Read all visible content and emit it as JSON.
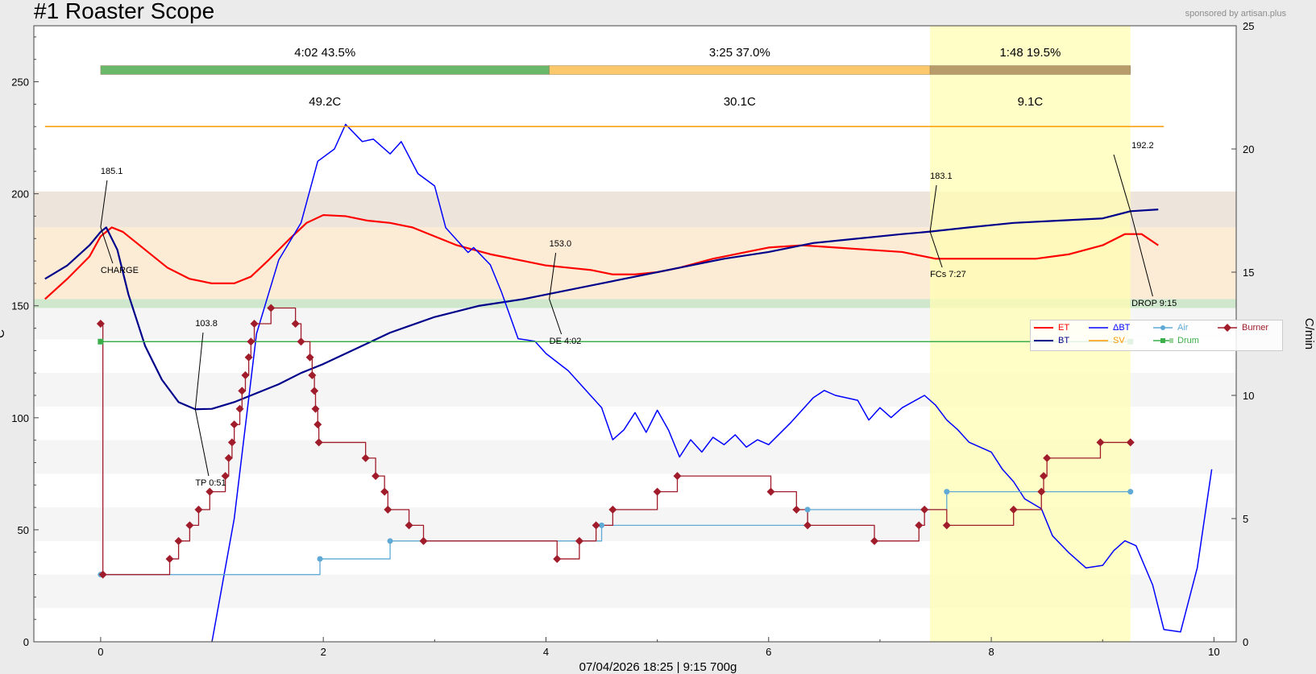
{
  "header": {
    "title": "#1 Roaster Scope",
    "sponsor": "sponsored by artisan.plus",
    "subtitle": "07/04/2026  18:25   |   9:15   700g"
  },
  "axes": {
    "ylabel_left": "C",
    "ylabel_right": "C/min"
  },
  "phases": [
    {
      "time_label": "4:02",
      "pct_label": "43.5%",
      "delta_label": "49.2C",
      "start": 0,
      "end": 4.03,
      "color": "#6ab96a"
    },
    {
      "time_label": "3:25",
      "pct_label": "37.0%",
      "delta_label": "30.1C",
      "start": 4.03,
      "end": 7.45,
      "color": "#fbc86b"
    },
    {
      "time_label": "1:48",
      "pct_label": "19.5%",
      "delta_label": "9.1C",
      "start": 7.45,
      "end": 9.25,
      "color": "#b89c6a"
    }
  ],
  "annotations": [
    {
      "value": "185.1",
      "event": "CHARGE",
      "x": 0.0,
      "y": 185.1
    },
    {
      "value": "103.8",
      "event": "TP 0:51",
      "x": 0.85,
      "y": 103.8
    },
    {
      "value": "153.0",
      "event": "DE 4:02",
      "x": 4.03,
      "y": 153.0
    },
    {
      "value": "183.1",
      "event": "FCs 7:27",
      "x": 7.45,
      "y": 183.1
    },
    {
      "value": "192.2",
      "event": "DROP 9:15",
      "x": 9.25,
      "y": 192.2
    }
  ],
  "legend": [
    {
      "label": "ET",
      "color": "#ff0000",
      "style": "line"
    },
    {
      "label": "ΔBT",
      "color": "#0000ff",
      "style": "line"
    },
    {
      "label": "Air",
      "color": "#5ea9d6",
      "style": "dot"
    },
    {
      "label": "Burner",
      "color": "#a01c2a",
      "style": "diamond"
    },
    {
      "label": "BT",
      "color": "#00008b",
      "style": "line"
    },
    {
      "label": "SV",
      "color": "#ff9a00",
      "style": "line"
    },
    {
      "label": "Drum",
      "color": "#3cae4a",
      "style": "square"
    }
  ],
  "chart_data": {
    "type": "line",
    "title": "#1 Roaster Scope",
    "xlim": [
      -0.6,
      10.2
    ],
    "ylim": [
      0,
      275
    ],
    "y2lim": [
      0,
      25
    ],
    "xticks": [
      "0",
      "2",
      "4",
      "6",
      "8",
      "10"
    ],
    "yticks": [
      "0",
      "50",
      "100",
      "150",
      "200",
      "250"
    ],
    "y2ticks": [
      "0",
      "5",
      "10",
      "15",
      "20",
      "25"
    ],
    "grid": false,
    "legend_position": "right",
    "highlight_band": {
      "x_start": 7.45,
      "x_end": 9.25,
      "color": "#fffdb3"
    },
    "bands": [
      {
        "y_start": 185,
        "y_end": 201,
        "color": "#ede4dc"
      },
      {
        "y_start": 153,
        "y_end": 185,
        "color": "#fdecd5"
      },
      {
        "y_start": 149,
        "y_end": 153,
        "color": "#cfe8cd"
      }
    ],
    "series": [
      {
        "name": "ET",
        "axis": "left",
        "color": "#ff0000",
        "points": [
          [
            -0.5,
            153
          ],
          [
            -0.3,
            162
          ],
          [
            -0.1,
            172
          ],
          [
            0.0,
            181
          ],
          [
            0.1,
            185
          ],
          [
            0.2,
            183
          ],
          [
            0.4,
            175
          ],
          [
            0.6,
            167
          ],
          [
            0.8,
            162
          ],
          [
            1.0,
            160
          ],
          [
            1.2,
            160
          ],
          [
            1.35,
            163
          ],
          [
            1.5,
            170
          ],
          [
            1.7,
            180
          ],
          [
            1.85,
            187
          ],
          [
            2.0,
            190.5
          ],
          [
            2.2,
            190
          ],
          [
            2.4,
            188
          ],
          [
            2.6,
            187
          ],
          [
            2.8,
            185
          ],
          [
            3.0,
            181
          ],
          [
            3.2,
            177
          ],
          [
            3.5,
            173
          ],
          [
            3.8,
            170
          ],
          [
            4.0,
            168
          ],
          [
            4.2,
            167
          ],
          [
            4.4,
            166
          ],
          [
            4.6,
            164
          ],
          [
            4.8,
            164
          ],
          [
            5.0,
            165
          ],
          [
            5.2,
            167
          ],
          [
            5.5,
            171
          ],
          [
            5.8,
            174
          ],
          [
            6.0,
            176
          ],
          [
            6.3,
            177
          ],
          [
            6.6,
            176
          ],
          [
            6.9,
            175
          ],
          [
            7.2,
            174
          ],
          [
            7.5,
            171
          ],
          [
            7.8,
            171
          ],
          [
            8.1,
            171
          ],
          [
            8.4,
            171
          ],
          [
            8.7,
            173
          ],
          [
            9.0,
            177
          ],
          [
            9.2,
            182
          ],
          [
            9.35,
            182
          ],
          [
            9.5,
            177
          ]
        ]
      },
      {
        "name": "BT",
        "axis": "left",
        "color": "#00008b",
        "points": [
          [
            -0.5,
            162
          ],
          [
            -0.3,
            168
          ],
          [
            -0.1,
            177
          ],
          [
            0.0,
            183
          ],
          [
            0.05,
            185
          ],
          [
            0.15,
            175
          ],
          [
            0.25,
            155
          ],
          [
            0.4,
            132
          ],
          [
            0.55,
            117
          ],
          [
            0.7,
            107
          ],
          [
            0.85,
            103.8
          ],
          [
            1.0,
            104
          ],
          [
            1.2,
            107
          ],
          [
            1.4,
            111
          ],
          [
            1.6,
            115
          ],
          [
            1.8,
            120
          ],
          [
            2.0,
            124
          ],
          [
            2.3,
            131
          ],
          [
            2.6,
            138
          ],
          [
            3.0,
            145
          ],
          [
            3.4,
            150
          ],
          [
            3.8,
            153
          ],
          [
            4.0,
            155
          ],
          [
            4.4,
            159
          ],
          [
            4.8,
            163
          ],
          [
            5.2,
            167
          ],
          [
            5.6,
            171
          ],
          [
            6.0,
            174
          ],
          [
            6.4,
            178
          ],
          [
            6.8,
            180
          ],
          [
            7.2,
            182
          ],
          [
            7.45,
            183.1
          ],
          [
            7.8,
            185
          ],
          [
            8.2,
            187
          ],
          [
            8.6,
            188
          ],
          [
            9.0,
            189
          ],
          [
            9.25,
            192.2
          ],
          [
            9.5,
            193
          ]
        ]
      },
      {
        "name": "ΔBT",
        "axis": "right",
        "color": "#0000ff",
        "points": [
          [
            1.0,
            0
          ],
          [
            1.2,
            5
          ],
          [
            1.4,
            12.5
          ],
          [
            1.6,
            15.5
          ],
          [
            1.8,
            17
          ],
          [
            1.95,
            19.5
          ],
          [
            2.1,
            20
          ],
          [
            2.2,
            21
          ],
          [
            2.35,
            20.3
          ],
          [
            2.45,
            20.4
          ],
          [
            2.6,
            19.8
          ],
          [
            2.7,
            20.3
          ],
          [
            2.85,
            19
          ],
          [
            3.0,
            18.5
          ],
          [
            3.1,
            16.8
          ],
          [
            3.3,
            15.8
          ],
          [
            3.35,
            16
          ],
          [
            3.5,
            15.3
          ],
          [
            3.6,
            14.2
          ],
          [
            3.75,
            12.3
          ],
          [
            3.9,
            12.2
          ],
          [
            4.0,
            11.7
          ],
          [
            4.2,
            11
          ],
          [
            4.4,
            10
          ],
          [
            4.5,
            9.5
          ],
          [
            4.6,
            8.2
          ],
          [
            4.7,
            8.6
          ],
          [
            4.8,
            9.3
          ],
          [
            4.9,
            8.5
          ],
          [
            5.0,
            9.4
          ],
          [
            5.1,
            8.6
          ],
          [
            5.2,
            7.5
          ],
          [
            5.3,
            8.2
          ],
          [
            5.4,
            7.7
          ],
          [
            5.5,
            8.3
          ],
          [
            5.6,
            8.0
          ],
          [
            5.7,
            8.4
          ],
          [
            5.8,
            7.9
          ],
          [
            5.9,
            8.2
          ],
          [
            6.0,
            8.0
          ],
          [
            6.2,
            8.9
          ],
          [
            6.4,
            9.9
          ],
          [
            6.5,
            10.2
          ],
          [
            6.6,
            10.0
          ],
          [
            6.8,
            9.8
          ],
          [
            6.9,
            9.0
          ],
          [
            7.0,
            9.5
          ],
          [
            7.1,
            9.1
          ],
          [
            7.2,
            9.5
          ],
          [
            7.4,
            10
          ],
          [
            7.5,
            9.6
          ],
          [
            7.6,
            9.0
          ],
          [
            7.7,
            8.6
          ],
          [
            7.8,
            8.1
          ],
          [
            7.9,
            7.9
          ],
          [
            8.0,
            7.7
          ],
          [
            8.1,
            7.0
          ],
          [
            8.2,
            6.5
          ],
          [
            8.3,
            5.8
          ],
          [
            8.45,
            5.4
          ],
          [
            8.55,
            4.3
          ],
          [
            8.7,
            3.6
          ],
          [
            8.85,
            3.0
          ],
          [
            9.0,
            3.1
          ],
          [
            9.1,
            3.7
          ],
          [
            9.2,
            4.1
          ],
          [
            9.3,
            3.9
          ],
          [
            9.45,
            2.3
          ],
          [
            9.55,
            0.5
          ],
          [
            9.7,
            0.4
          ],
          [
            9.85,
            3.0
          ],
          [
            9.98,
            7.0
          ]
        ]
      },
      {
        "name": "SV",
        "axis": "left",
        "color": "#ff9a00",
        "points": [
          [
            -0.5,
            230
          ],
          [
            9.55,
            230
          ]
        ]
      },
      {
        "name": "Drum",
        "axis": "left",
        "color": "#3cae4a",
        "marker": "square",
        "points": [
          [
            0.0,
            134
          ],
          [
            9.25,
            134
          ]
        ]
      },
      {
        "name": "Air",
        "axis": "left",
        "color": "#5ea9d6",
        "marker": "dot",
        "step": true,
        "points": [
          [
            0.0,
            30
          ],
          [
            1.97,
            37
          ],
          [
            2.6,
            45
          ],
          [
            4.5,
            52
          ],
          [
            6.35,
            59
          ],
          [
            7.6,
            67
          ],
          [
            9.25,
            67
          ]
        ]
      },
      {
        "name": "Burner",
        "axis": "left",
        "color": "#a01c2a",
        "marker": "diamond",
        "step": true,
        "points": [
          [
            0.0,
            142
          ],
          [
            0.02,
            30
          ],
          [
            0.62,
            37
          ],
          [
            0.7,
            45
          ],
          [
            0.8,
            52
          ],
          [
            0.88,
            59
          ],
          [
            0.98,
            67
          ],
          [
            1.12,
            74
          ],
          [
            1.15,
            82
          ],
          [
            1.18,
            89
          ],
          [
            1.2,
            97
          ],
          [
            1.25,
            104
          ],
          [
            1.27,
            112
          ],
          [
            1.3,
            119
          ],
          [
            1.33,
            127
          ],
          [
            1.35,
            134
          ],
          [
            1.38,
            142
          ],
          [
            1.53,
            149
          ],
          [
            1.75,
            142
          ],
          [
            1.8,
            134
          ],
          [
            1.88,
            127
          ],
          [
            1.9,
            119
          ],
          [
            1.92,
            112
          ],
          [
            1.93,
            104
          ],
          [
            1.95,
            97
          ],
          [
            1.96,
            89
          ],
          [
            2.38,
            82
          ],
          [
            2.47,
            74
          ],
          [
            2.55,
            67
          ],
          [
            2.58,
            59
          ],
          [
            2.77,
            52
          ],
          [
            2.9,
            45
          ],
          [
            4.1,
            37
          ],
          [
            4.3,
            45
          ],
          [
            4.45,
            52
          ],
          [
            4.6,
            59
          ],
          [
            5.0,
            67
          ],
          [
            5.18,
            74
          ],
          [
            6.02,
            67
          ],
          [
            6.25,
            59
          ],
          [
            6.35,
            52
          ],
          [
            6.95,
            45
          ],
          [
            7.35,
            52
          ],
          [
            7.4,
            59
          ],
          [
            7.6,
            52
          ],
          [
            8.2,
            59
          ],
          [
            8.45,
            67
          ],
          [
            8.47,
            74
          ],
          [
            8.5,
            82
          ],
          [
            8.98,
            89
          ],
          [
            9.25,
            89
          ]
        ]
      }
    ]
  }
}
